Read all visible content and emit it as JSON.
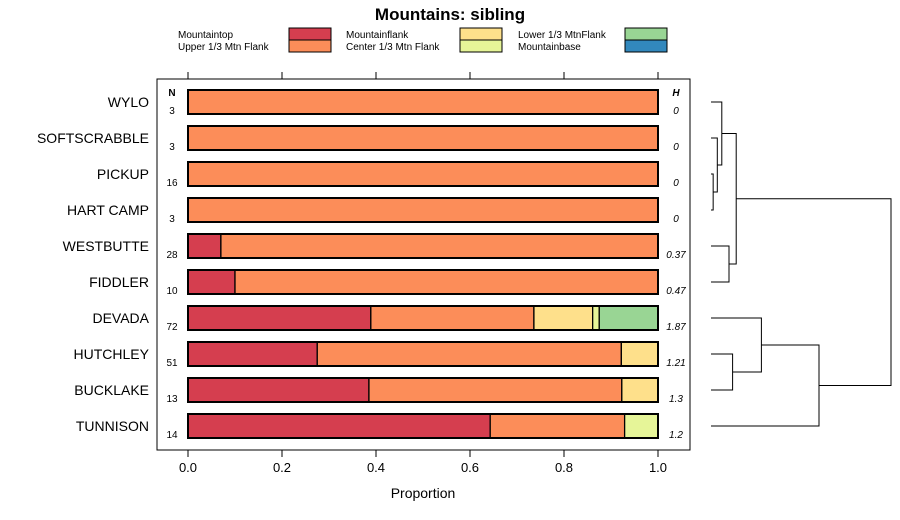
{
  "chart_data": {
    "type": "bar",
    "orientation": "horizontal",
    "stacked": true,
    "title": "Mountains: sibling",
    "xlabel": "Proportion",
    "ylabel": "",
    "xlim": [
      0,
      1
    ],
    "x_ticks": [
      "0.0",
      "0.2",
      "0.4",
      "0.6",
      "0.8",
      "1.0"
    ],
    "n_header": "N",
    "h_header": "H",
    "legend_position": "top",
    "series": [
      {
        "name": "Mountaintop",
        "color": "#d53e4f"
      },
      {
        "name": "Upper 1/3 Mtn Flank",
        "color": "#fc8d59"
      },
      {
        "name": "Mountainflank",
        "color": "#fee08b"
      },
      {
        "name": "Center 1/3 Mtn Flank",
        "color": "#e6f598"
      },
      {
        "name": "Lower 1/3 MtnFlank",
        "color": "#99d594"
      },
      {
        "name": "Mountainbase",
        "color": "#3288bd"
      }
    ],
    "categories": [
      "WYLO",
      "SOFTSCRABBLE",
      "PICKUP",
      "HART CAMP",
      "WESTBUTTE",
      "FIDDLER",
      "DEVADA",
      "HUTCHLEY",
      "BUCKLAKE",
      "TUNNISON"
    ],
    "n": [
      "3",
      "3",
      "16",
      "3",
      "28",
      "10",
      "72",
      "51",
      "13",
      "14"
    ],
    "h": [
      "0",
      "0",
      "0",
      "0",
      "0.37",
      "0.47",
      "1.87",
      "1.21",
      "1.3",
      "1.2"
    ],
    "values": [
      [
        0,
        1,
        0,
        0,
        0,
        0
      ],
      [
        0,
        1,
        0,
        0,
        0,
        0
      ],
      [
        0,
        1,
        0,
        0,
        0,
        0
      ],
      [
        0,
        1,
        0,
        0,
        0,
        0
      ],
      [
        0.07,
        0.93,
        0,
        0,
        0,
        0
      ],
      [
        0.1,
        0.9,
        0,
        0,
        0,
        0
      ],
      [
        0.389,
        0.347,
        0.125,
        0.014,
        0.125,
        0
      ],
      [
        0.275,
        0.647,
        0.078,
        0,
        0,
        0
      ],
      [
        0.385,
        0.538,
        0.077,
        0,
        0,
        0
      ],
      [
        0.643,
        0.286,
        0,
        0.071,
        0,
        0
      ]
    ],
    "dendrogram": {
      "merges": [
        [
          -3,
          -4
        ],
        [
          -2,
          1
        ],
        [
          -1,
          2
        ],
        [
          -5,
          -6
        ],
        [
          3,
          4
        ],
        [
          -8,
          -9
        ],
        [
          -7,
          6
        ],
        [
          -10,
          7
        ],
        [
          5,
          8
        ]
      ],
      "heights": [
        0.012,
        0.035,
        0.06,
        0.1,
        0.14,
        0.12,
        0.28,
        0.6,
        1.0
      ]
    }
  }
}
